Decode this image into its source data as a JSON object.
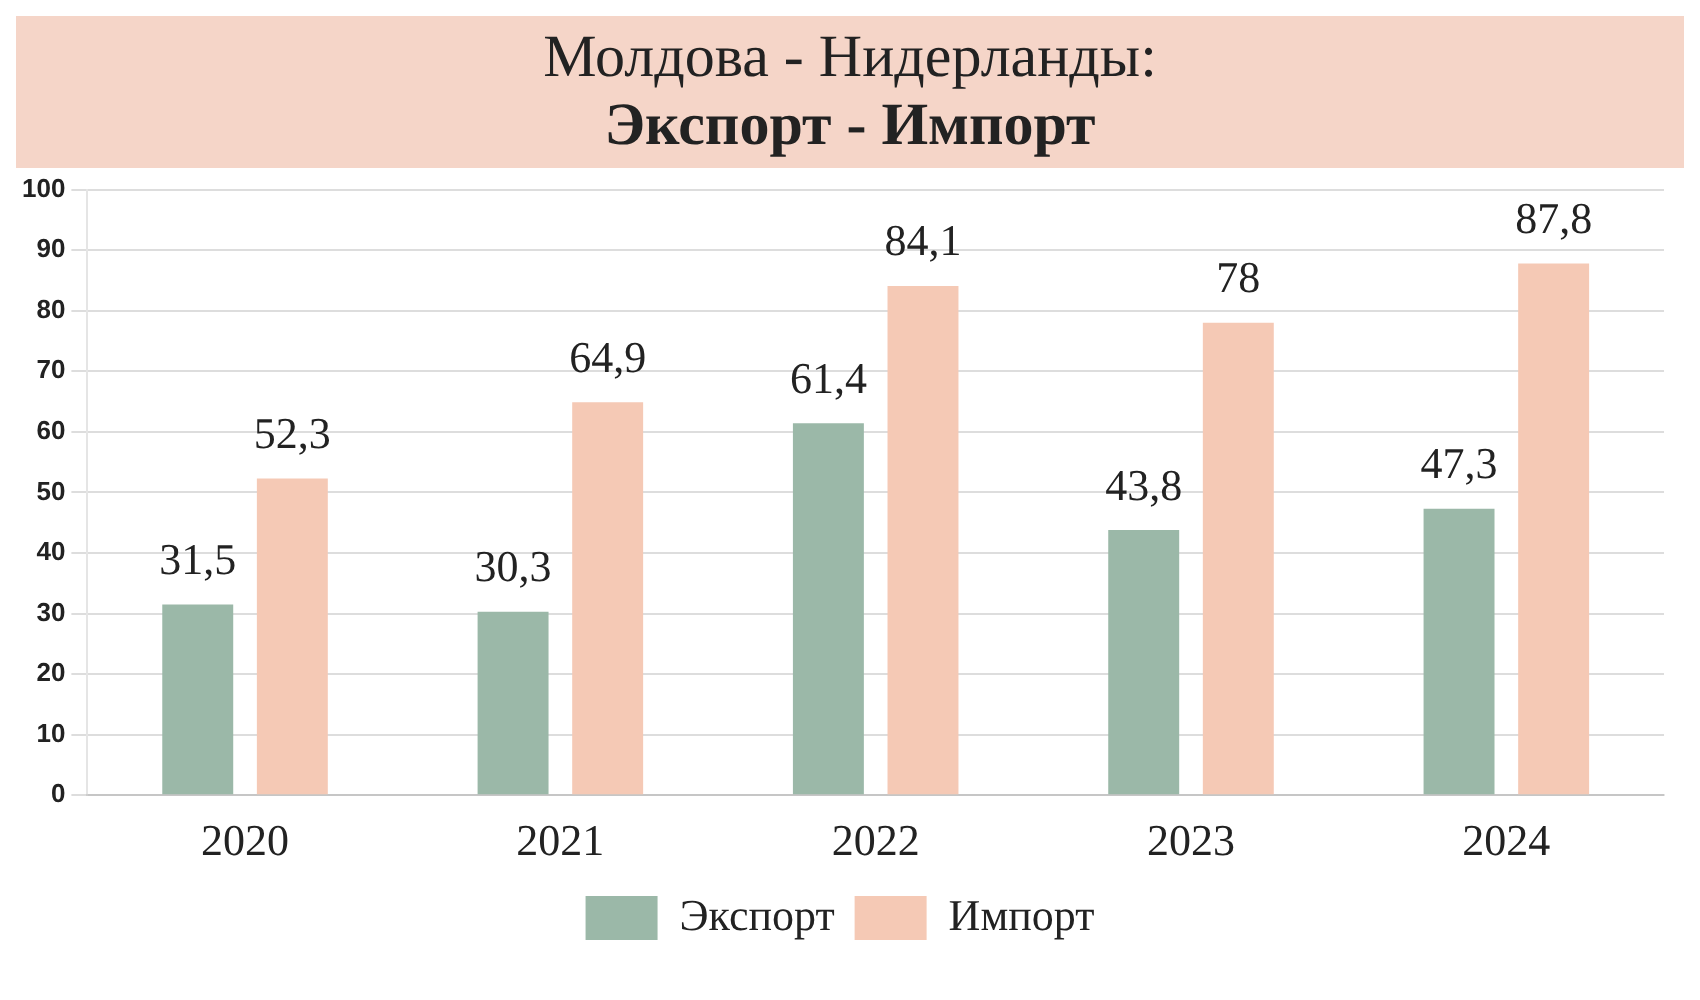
{
  "chart_data": {
    "type": "bar",
    "title": "Молдова - Нидерланды:",
    "subtitle": "Экспорт - Импорт",
    "categories": [
      "2020",
      "2021",
      "2022",
      "2023",
      "2024"
    ],
    "series": [
      {
        "name": "Экспорт",
        "color": "#9bb8a8",
        "values": [
          31.5,
          30.3,
          61.4,
          43.8,
          47.3
        ],
        "value_labels": [
          "31,5",
          "30,3",
          "61,4",
          "43,8",
          "47,3"
        ]
      },
      {
        "name": "Импорт",
        "color": "#f5c9b5",
        "values": [
          52.3,
          64.9,
          84.1,
          78,
          87.8
        ],
        "value_labels": [
          "52,3",
          "64,9",
          "84,1",
          "78",
          "87,8"
        ]
      }
    ],
    "ylim": [
      0,
      100
    ],
    "yticks": [
      0,
      10,
      20,
      30,
      40,
      50,
      60,
      70,
      80,
      90,
      100
    ],
    "grid": "y",
    "legend": "bottom"
  }
}
